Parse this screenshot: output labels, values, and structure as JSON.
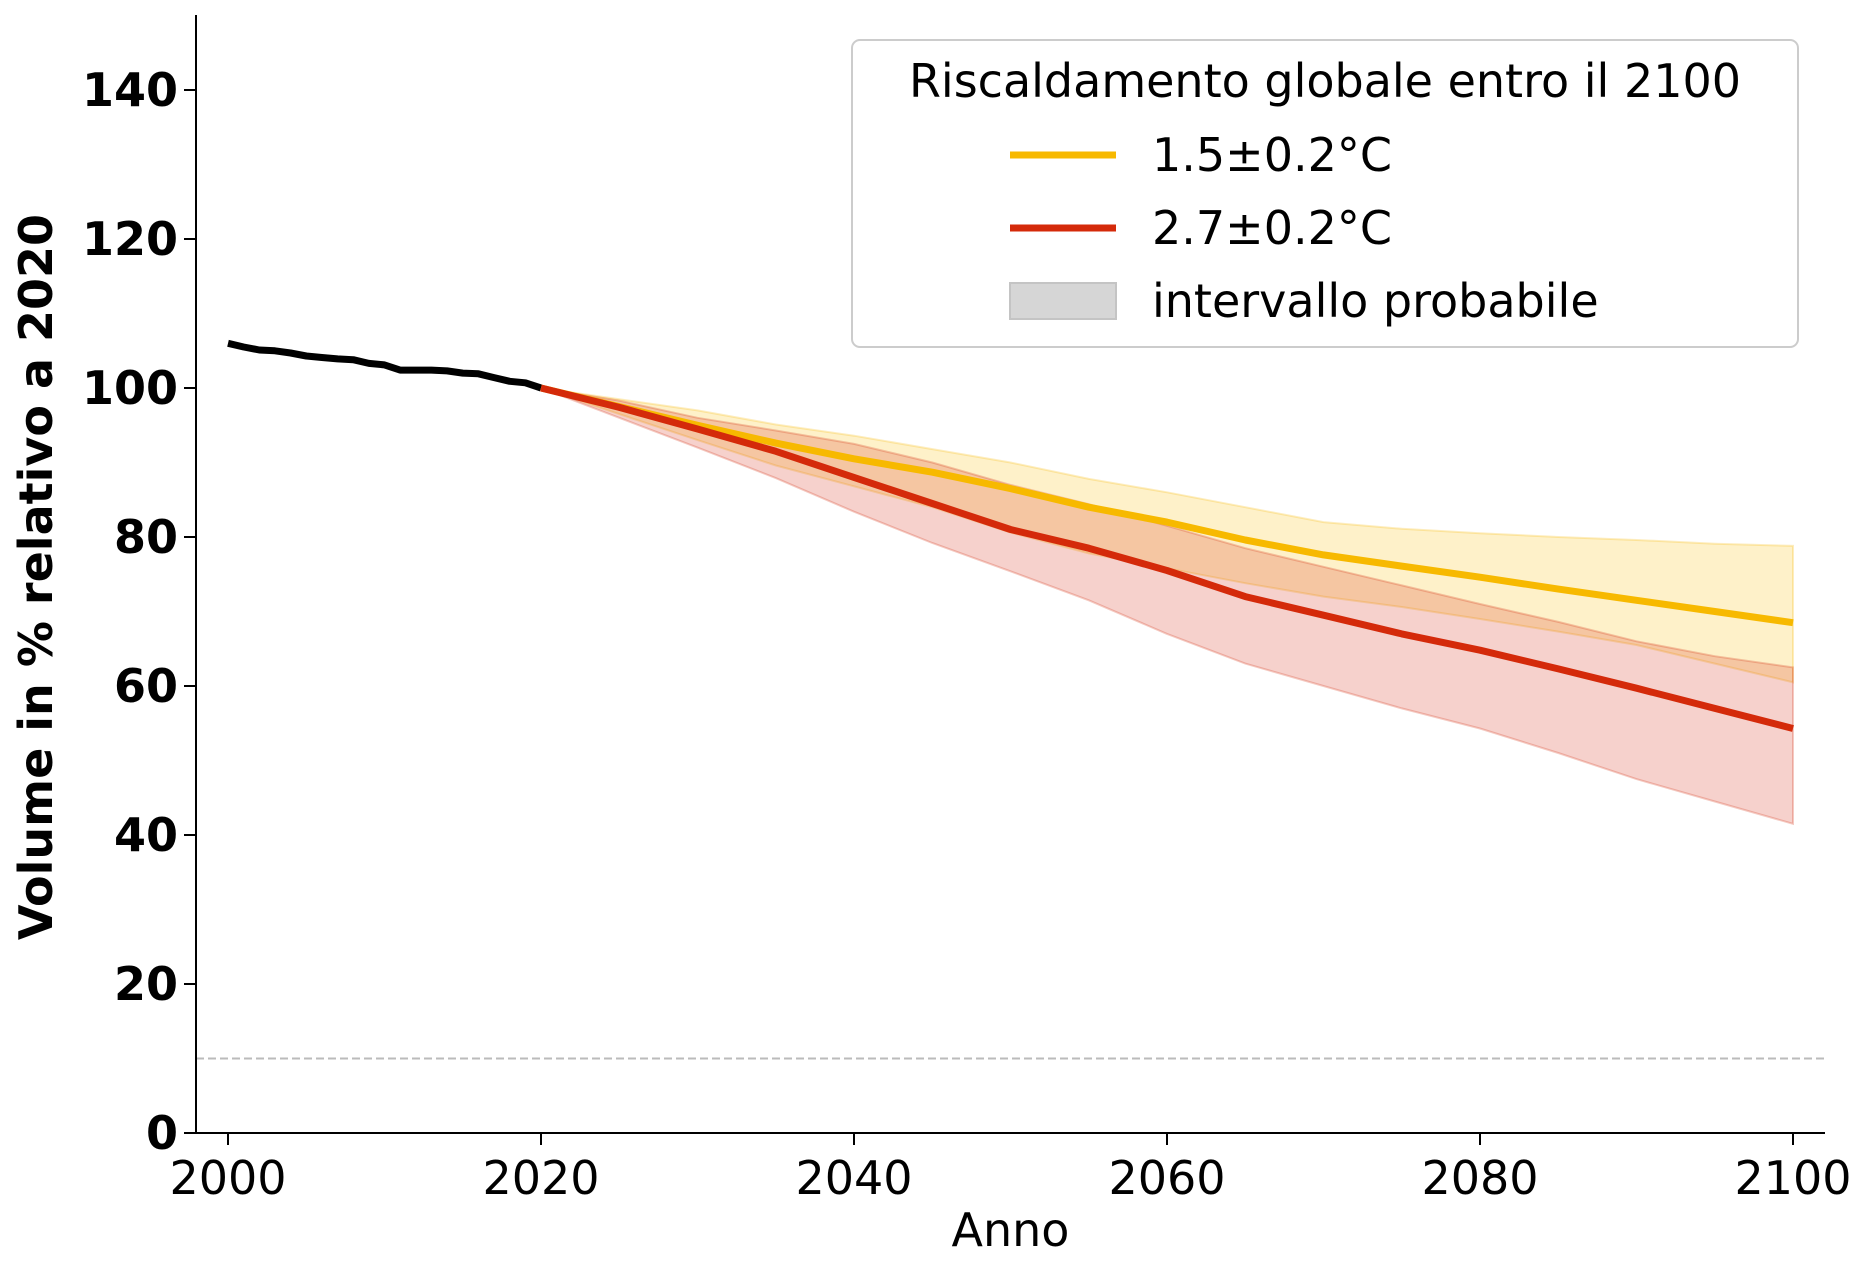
{
  "chart_data": {
    "type": "line",
    "title": "",
    "xlabel": "Anno",
    "ylabel": "Volume in % relativo a 2020",
    "xlim": [
      1997,
      2102
    ],
    "ylim": [
      0,
      150
    ],
    "xticks": [
      2000,
      2020,
      2040,
      2060,
      2080,
      2100
    ],
    "yticks": [
      0,
      20,
      40,
      60,
      80,
      100,
      120,
      140
    ],
    "xtick_labels": [
      "2000",
      "2020",
      "2040",
      "2060",
      "2080",
      "2100"
    ],
    "ytick_labels": [
      "0",
      "20",
      "40",
      "60",
      "80",
      "100",
      "120",
      "140"
    ],
    "grid": false,
    "reference_line": {
      "y": 10,
      "style": "dashed",
      "color": "#bbbbbb"
    },
    "legend": {
      "title": "Riscaldamento globale entro il 2100",
      "placement": "top-right",
      "entries": [
        {
          "label": "1.5±0.2°C",
          "kind": "line",
          "color": "#f7b900"
        },
        {
          "label": "2.7±0.2°C",
          "kind": "line",
          "color": "#d42a0a"
        },
        {
          "label": "intervallo probabile",
          "kind": "patch",
          "color": "#d6d6d6"
        }
      ]
    },
    "series": [
      {
        "color": "#000000",
        "x": [
          2000,
          2001,
          2002,
          2003,
          2004,
          2005,
          2006,
          2007,
          2008,
          2009,
          2010,
          2011,
          2012,
          2013,
          2014,
          2015,
          2016,
          2017,
          2018,
          2019,
          2020
        ],
        "y": [
          106,
          105.5,
          105.1,
          105,
          104.7,
          104.3,
          104.1,
          103.9,
          103.8,
          103.3,
          103.1,
          102.4,
          102.4,
          102.4,
          102.3,
          102,
          101.9,
          101.4,
          100.9,
          100.7,
          100
        ]
      },
      {
        "name": "1.5±0.2°C",
        "color": "#f7b900",
        "x": [
          2020,
          2025,
          2030,
          2035,
          2040,
          2045,
          2050,
          2055,
          2060,
          2065,
          2070,
          2075,
          2080,
          2085,
          2090,
          2095,
          2100
        ],
        "y": [
          100,
          97.5,
          95,
          92.6,
          90.5,
          88.7,
          86.5,
          84,
          82,
          79.6,
          77.6,
          76.1,
          74.6,
          73,
          71.5,
          70,
          68.5
        ],
        "band_low": [
          100,
          96.5,
          93,
          89.6,
          86.8,
          84,
          80.6,
          77.8,
          75.8,
          73.8,
          72,
          70.6,
          69,
          67.3,
          65.5,
          63,
          60.5
        ],
        "band_high": [
          100,
          98.5,
          97,
          95.1,
          93.6,
          91.8,
          90,
          87.8,
          86,
          84,
          82,
          81.1,
          80.5,
          80,
          79.6,
          79.1,
          78.8
        ]
      },
      {
        "name": "2.7±0.2°C",
        "color": "#d42a0a",
        "x": [
          2020,
          2025,
          2030,
          2035,
          2040,
          2045,
          2050,
          2055,
          2060,
          2065,
          2070,
          2075,
          2080,
          2085,
          2090,
          2095,
          2100
        ],
        "y": [
          100,
          97.4,
          94.5,
          91.5,
          88,
          84.5,
          81,
          78.5,
          75.5,
          72,
          69.5,
          67,
          64.8,
          62.3,
          59.7,
          57,
          54.3
        ],
        "band_low": [
          100,
          96,
          92,
          87.9,
          83.4,
          79.2,
          75.4,
          71.5,
          67,
          63,
          60,
          57,
          54.3,
          51,
          47.5,
          44.5,
          41.5
        ],
        "band_high": [
          100,
          98.3,
          96,
          94.3,
          92.5,
          90,
          87,
          84.4,
          81.5,
          78.5,
          76,
          73.5,
          71,
          68.6,
          66,
          64,
          62.5
        ]
      }
    ]
  }
}
